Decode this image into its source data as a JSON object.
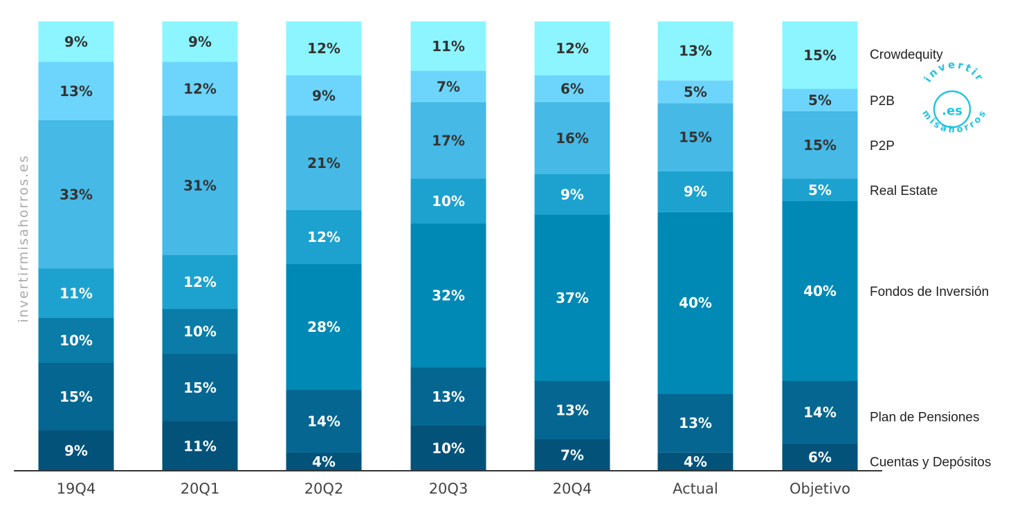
{
  "watermark": "invertirmisahorros.es",
  "logo": {
    "top": "invertir",
    "center": ".es",
    "bottom": "misahorros",
    "color": "#22c4e0"
  },
  "chart_data": {
    "type": "bar",
    "stacked": true,
    "percent": true,
    "categories": [
      "19Q4",
      "20Q1",
      "20Q2",
      "20Q3",
      "20Q4",
      "Actual",
      "Objetivo"
    ],
    "series": [
      {
        "name": "Cuentas y Depósitos",
        "color": "#03527a",
        "label_color": "#ffffff",
        "values": [
          9,
          11,
          4,
          10,
          7,
          4,
          6
        ]
      },
      {
        "name": "Plan de Pensiones",
        "color": "#056791",
        "label_color": "#ffffff",
        "values": [
          15,
          15,
          14,
          13,
          13,
          13,
          14
        ]
      },
      {
        "name": "",
        "color": "#0a7ca7",
        "label_color": "#ffffff",
        "values": [
          10,
          10,
          0,
          0,
          0,
          0,
          0
        ]
      },
      {
        "name": "Fondos de Inversión",
        "color": "#0089b5",
        "label_color": "#ffffff",
        "values": [
          0,
          0,
          28,
          32,
          37,
          40,
          40
        ]
      },
      {
        "name": "Real Estate",
        "color": "#1da2cf",
        "label_color": "#ffffff",
        "values": [
          11,
          12,
          12,
          10,
          9,
          9,
          5
        ]
      },
      {
        "name": "P2P",
        "color": "#46b9e6",
        "label_color": "#333333",
        "values": [
          33,
          31,
          21,
          17,
          16,
          15,
          15
        ]
      },
      {
        "name": "P2B",
        "color": "#6dd5fb",
        "label_color": "#333333",
        "values": [
          13,
          12,
          9,
          7,
          6,
          5,
          5
        ]
      },
      {
        "name": "Crowdequity",
        "color": "#8cf5ff",
        "label_color": "#333333",
        "values": [
          9,
          9,
          12,
          11,
          12,
          13,
          15
        ]
      }
    ],
    "legend_position": "right",
    "grid": false
  }
}
